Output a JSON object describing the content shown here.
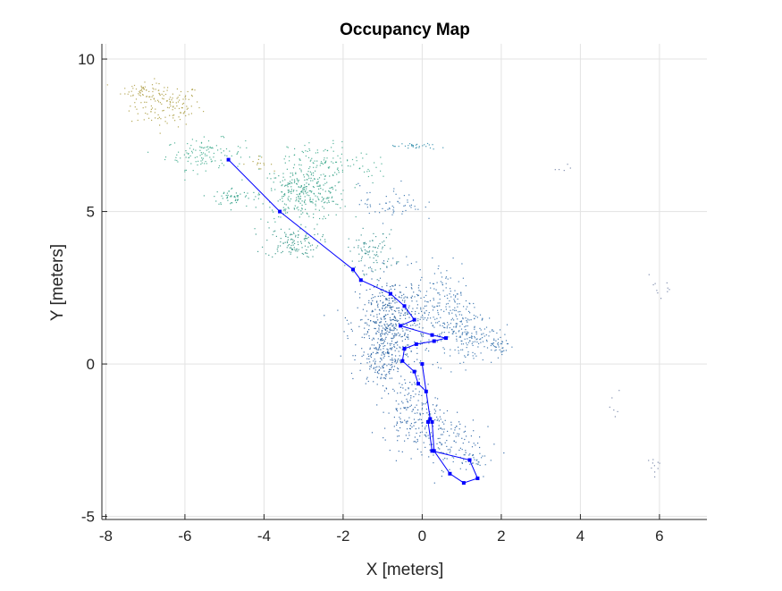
{
  "chart_data": {
    "type": "scatter",
    "title": "Occupancy Map",
    "xlabel": "X [meters]",
    "ylabel": "Y [meters]",
    "xlim": [
      -8.1,
      7.2
    ],
    "ylim": [
      -5.1,
      10.5
    ],
    "xticks": [
      -8,
      -6,
      -4,
      -2,
      0,
      2,
      4,
      6
    ],
    "yticks": [
      -5,
      0,
      5,
      10
    ],
    "grid": true,
    "colors": {
      "path": "#0000ff",
      "grid": "#e3e3e3",
      "axis": "#262626"
    },
    "series": [
      {
        "kind": "trajectory",
        "x": [
          -4.9,
          -3.6,
          -1.75,
          -1.55,
          -0.8,
          -0.45,
          -0.2,
          -0.55,
          0.25,
          0.6,
          0.3,
          -0.15,
          -0.45,
          -0.5,
          -0.2,
          -0.1,
          0.1,
          0.0,
          0.2,
          0.25,
          0.3,
          0.7,
          1.05,
          1.4,
          1.2,
          0.25,
          0.15
        ],
        "y": [
          6.7,
          5.0,
          3.1,
          2.75,
          2.3,
          1.9,
          1.45,
          1.25,
          0.95,
          0.85,
          0.75,
          0.65,
          0.5,
          0.1,
          -0.25,
          -0.65,
          -0.9,
          0.0,
          -1.8,
          -1.9,
          -2.85,
          -3.6,
          -3.9,
          -3.75,
          -3.15,
          -2.85,
          -1.9
        ]
      },
      {
        "kind": "occupied-cells",
        "clusters": [
          {
            "cx": -6.5,
            "cy": 8.5,
            "sx": 0.45,
            "sy": 0.35,
            "n": 140,
            "color": "#a89a3a"
          },
          {
            "cx": -7.1,
            "cy": 9.0,
            "sx": 0.25,
            "sy": 0.15,
            "n": 40,
            "color": "#b0a04a"
          },
          {
            "cx": -5.5,
            "cy": 6.9,
            "sx": 0.5,
            "sy": 0.25,
            "n": 120,
            "color": "#3aa88a"
          },
          {
            "cx": -4.2,
            "cy": 6.6,
            "sx": 0.2,
            "sy": 0.1,
            "n": 15,
            "color": "#a89a3a"
          },
          {
            "cx": -3.0,
            "cy": 5.6,
            "sx": 0.55,
            "sy": 0.45,
            "n": 320,
            "color": "#2f9c84"
          },
          {
            "cx": -4.8,
            "cy": 5.5,
            "sx": 0.25,
            "sy": 0.15,
            "n": 50,
            "color": "#2a9c84"
          },
          {
            "cx": -3.3,
            "cy": 4.0,
            "sx": 0.35,
            "sy": 0.25,
            "n": 120,
            "color": "#2a9080"
          },
          {
            "cx": -2.6,
            "cy": 6.7,
            "sx": 0.4,
            "sy": 0.3,
            "n": 80,
            "color": "#3aa88a"
          },
          {
            "cx": -1.3,
            "cy": 3.7,
            "sx": 0.3,
            "sy": 0.35,
            "n": 90,
            "color": "#2a8a88"
          },
          {
            "cx": -0.8,
            "cy": 1.5,
            "sx": 0.45,
            "sy": 0.7,
            "n": 420,
            "color": "#1f5a9a"
          },
          {
            "cx": -1.0,
            "cy": 0.3,
            "sx": 0.3,
            "sy": 0.5,
            "n": 200,
            "color": "#1e5aa0"
          },
          {
            "cx": 0.6,
            "cy": 1.8,
            "sx": 0.4,
            "sy": 0.8,
            "n": 220,
            "color": "#2a6aa8"
          },
          {
            "cx": 1.3,
            "cy": 0.9,
            "sx": 0.35,
            "sy": 0.4,
            "n": 120,
            "color": "#2a6aa8"
          },
          {
            "cx": -0.3,
            "cy": -1.5,
            "sx": 0.35,
            "sy": 0.55,
            "n": 150,
            "color": "#1e5aa0"
          },
          {
            "cx": 0.4,
            "cy": -2.4,
            "sx": 0.5,
            "sy": 0.5,
            "n": 140,
            "color": "#1e5aa0"
          },
          {
            "cx": 1.2,
            "cy": -3.1,
            "sx": 0.3,
            "sy": 0.15,
            "n": 40,
            "color": "#2a6aa8"
          },
          {
            "cx": 1.9,
            "cy": 0.6,
            "sx": 0.15,
            "sy": 0.15,
            "n": 30,
            "color": "#2a6aa8"
          },
          {
            "cx": -0.2,
            "cy": 7.15,
            "sx": 0.3,
            "sy": 0.05,
            "n": 30,
            "color": "#2a8aa8"
          },
          {
            "cx": -0.8,
            "cy": 5.3,
            "sx": 0.4,
            "sy": 0.3,
            "n": 60,
            "color": "#2a6aa8"
          },
          {
            "cx": -1.5,
            "cy": 6.5,
            "sx": 0.3,
            "sy": 0.2,
            "n": 25,
            "color": "#3aa88a"
          },
          {
            "cx": 5.9,
            "cy": -3.3,
            "sx": 0.1,
            "sy": 0.2,
            "n": 10,
            "color": "#6a7aa0"
          },
          {
            "cx": 4.9,
            "cy": -1.3,
            "sx": 0.1,
            "sy": 0.2,
            "n": 6,
            "color": "#6a7aa0"
          },
          {
            "cx": 6.0,
            "cy": 2.5,
            "sx": 0.2,
            "sy": 0.3,
            "n": 10,
            "color": "#6a7aa0"
          },
          {
            "cx": 3.5,
            "cy": 6.4,
            "sx": 0.15,
            "sy": 0.1,
            "n": 5,
            "color": "#6a7aa0"
          }
        ]
      }
    ]
  }
}
